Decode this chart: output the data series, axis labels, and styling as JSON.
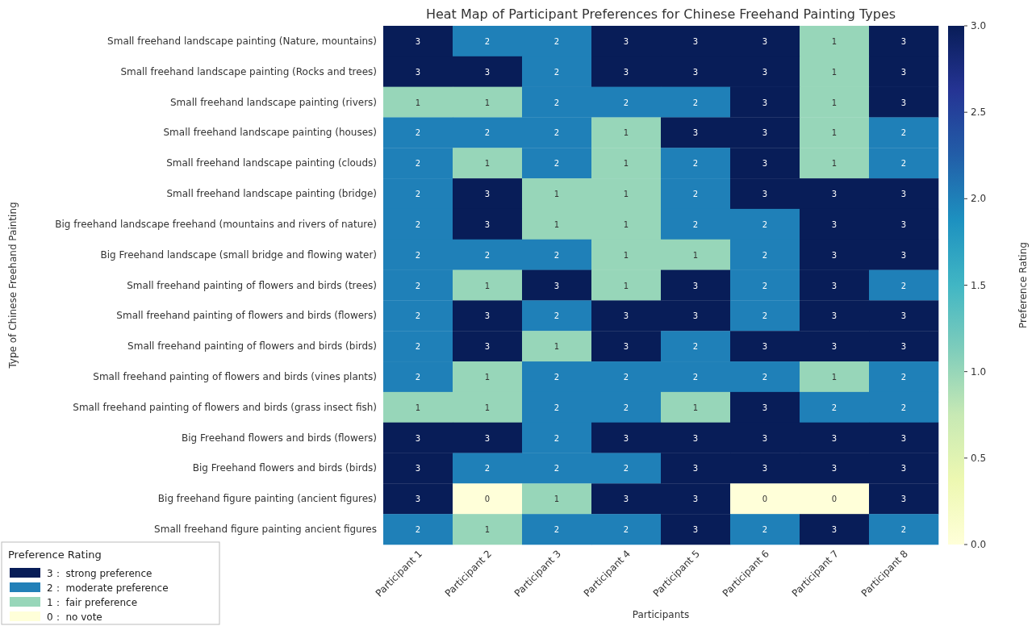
{
  "chart_data": {
    "type": "heatmap",
    "title": "Heat Map of Participant Preferences for Chinese Freehand Painting Types",
    "xlabel": "Participants",
    "ylabel": "Type of Chinese Freehand Painting",
    "clabel": "Preference Rating",
    "legend_title": "Preference Rating",
    "legend": "bottom left",
    "categories": [
      "Participant 1",
      "Participant 2",
      "Participant 3",
      "Participant 4",
      "Participant 5",
      "Participant 6",
      "Participant 7",
      "Participant 8"
    ],
    "y_categories": [
      "Small freehand landscape painting (Nature, mountains)",
      "Small freehand landscape painting (Rocks and trees)",
      "Small freehand landscape painting (rivers)",
      "Small freehand landscape painting (houses)",
      "Small freehand landscape painting (clouds)",
      "Small freehand landscape painting (bridge)",
      "Big freehand landscape freehand (mountains and rivers of nature)",
      "Big Freehand landscape (small bridge and flowing water)",
      "Small freehand painting of flowers and birds (trees)",
      "Small freehand painting of flowers and birds (flowers)",
      "Small freehand painting of flowers and birds (birds)",
      "Small freehand painting of flowers and birds (vines plants)",
      "Small freehand painting of flowers and birds (grass insect fish)",
      "Big Freehand flowers and birds (flowers)",
      "Big Freehand flowers and birds (birds)",
      "Big freehand figure painting (ancient figures)",
      "Small freehand figure painting ancient figures"
    ],
    "cells": [
      [
        3,
        2,
        2,
        3,
        3,
        3,
        1,
        3
      ],
      [
        3,
        3,
        2,
        3,
        3,
        3,
        1,
        3
      ],
      [
        1,
        1,
        2,
        2,
        2,
        3,
        1,
        3
      ],
      [
        2,
        2,
        2,
        1,
        3,
        3,
        1,
        2
      ],
      [
        2,
        1,
        2,
        1,
        2,
        3,
        1,
        2
      ],
      [
        2,
        3,
        1,
        1,
        2,
        3,
        3,
        3
      ],
      [
        2,
        3,
        1,
        1,
        2,
        2,
        3,
        3
      ],
      [
        2,
        2,
        2,
        1,
        1,
        2,
        3,
        3
      ],
      [
        2,
        1,
        3,
        1,
        3,
        2,
        3,
        2
      ],
      [
        2,
        3,
        2,
        3,
        3,
        2,
        3,
        3
      ],
      [
        2,
        3,
        1,
        3,
        2,
        3,
        3,
        3
      ],
      [
        2,
        1,
        2,
        2,
        2,
        2,
        1,
        2
      ],
      [
        1,
        1,
        2,
        2,
        1,
        3,
        2,
        2
      ],
      [
        3,
        3,
        2,
        3,
        3,
        3,
        3,
        3
      ],
      [
        3,
        2,
        2,
        2,
        3,
        3,
        3,
        3
      ],
      [
        3,
        0,
        1,
        3,
        3,
        0,
        0,
        3
      ],
      [
        2,
        1,
        2,
        2,
        3,
        2,
        3,
        2
      ]
    ],
    "data_labels": true,
    "clim": [
      0,
      3
    ],
    "cticks": [
      {
        "value": 0,
        "label": "0.0"
      },
      {
        "value": 0.5,
        "label": "0.5"
      },
      {
        "value": 1,
        "label": "1.0"
      },
      {
        "value": 1.5,
        "label": "1.5"
      },
      {
        "value": 2,
        "label": "2.0"
      },
      {
        "value": 2.5,
        "label": "2.5"
      },
      {
        "value": 3,
        "label": "3.0"
      }
    ],
    "series": [
      {
        "name": "3： strong preference",
        "color": "#081d58",
        "values": [
          null,
          null,
          null,
          null,
          null,
          null,
          null,
          null
        ]
      },
      {
        "name": "2： moderate preference",
        "color": "#2280b8",
        "values": [
          null,
          null,
          null,
          null,
          null,
          null,
          null,
          null
        ]
      },
      {
        "name": "1： fair preference",
        "color": "#97d6b9",
        "values": [
          null,
          null,
          null,
          null,
          null,
          null,
          null,
          null
        ]
      },
      {
        "name": "0： no vote",
        "color": "#ffffd9",
        "values": [
          null,
          null,
          null,
          null,
          null,
          null,
          null,
          null
        ]
      }
    ]
  }
}
